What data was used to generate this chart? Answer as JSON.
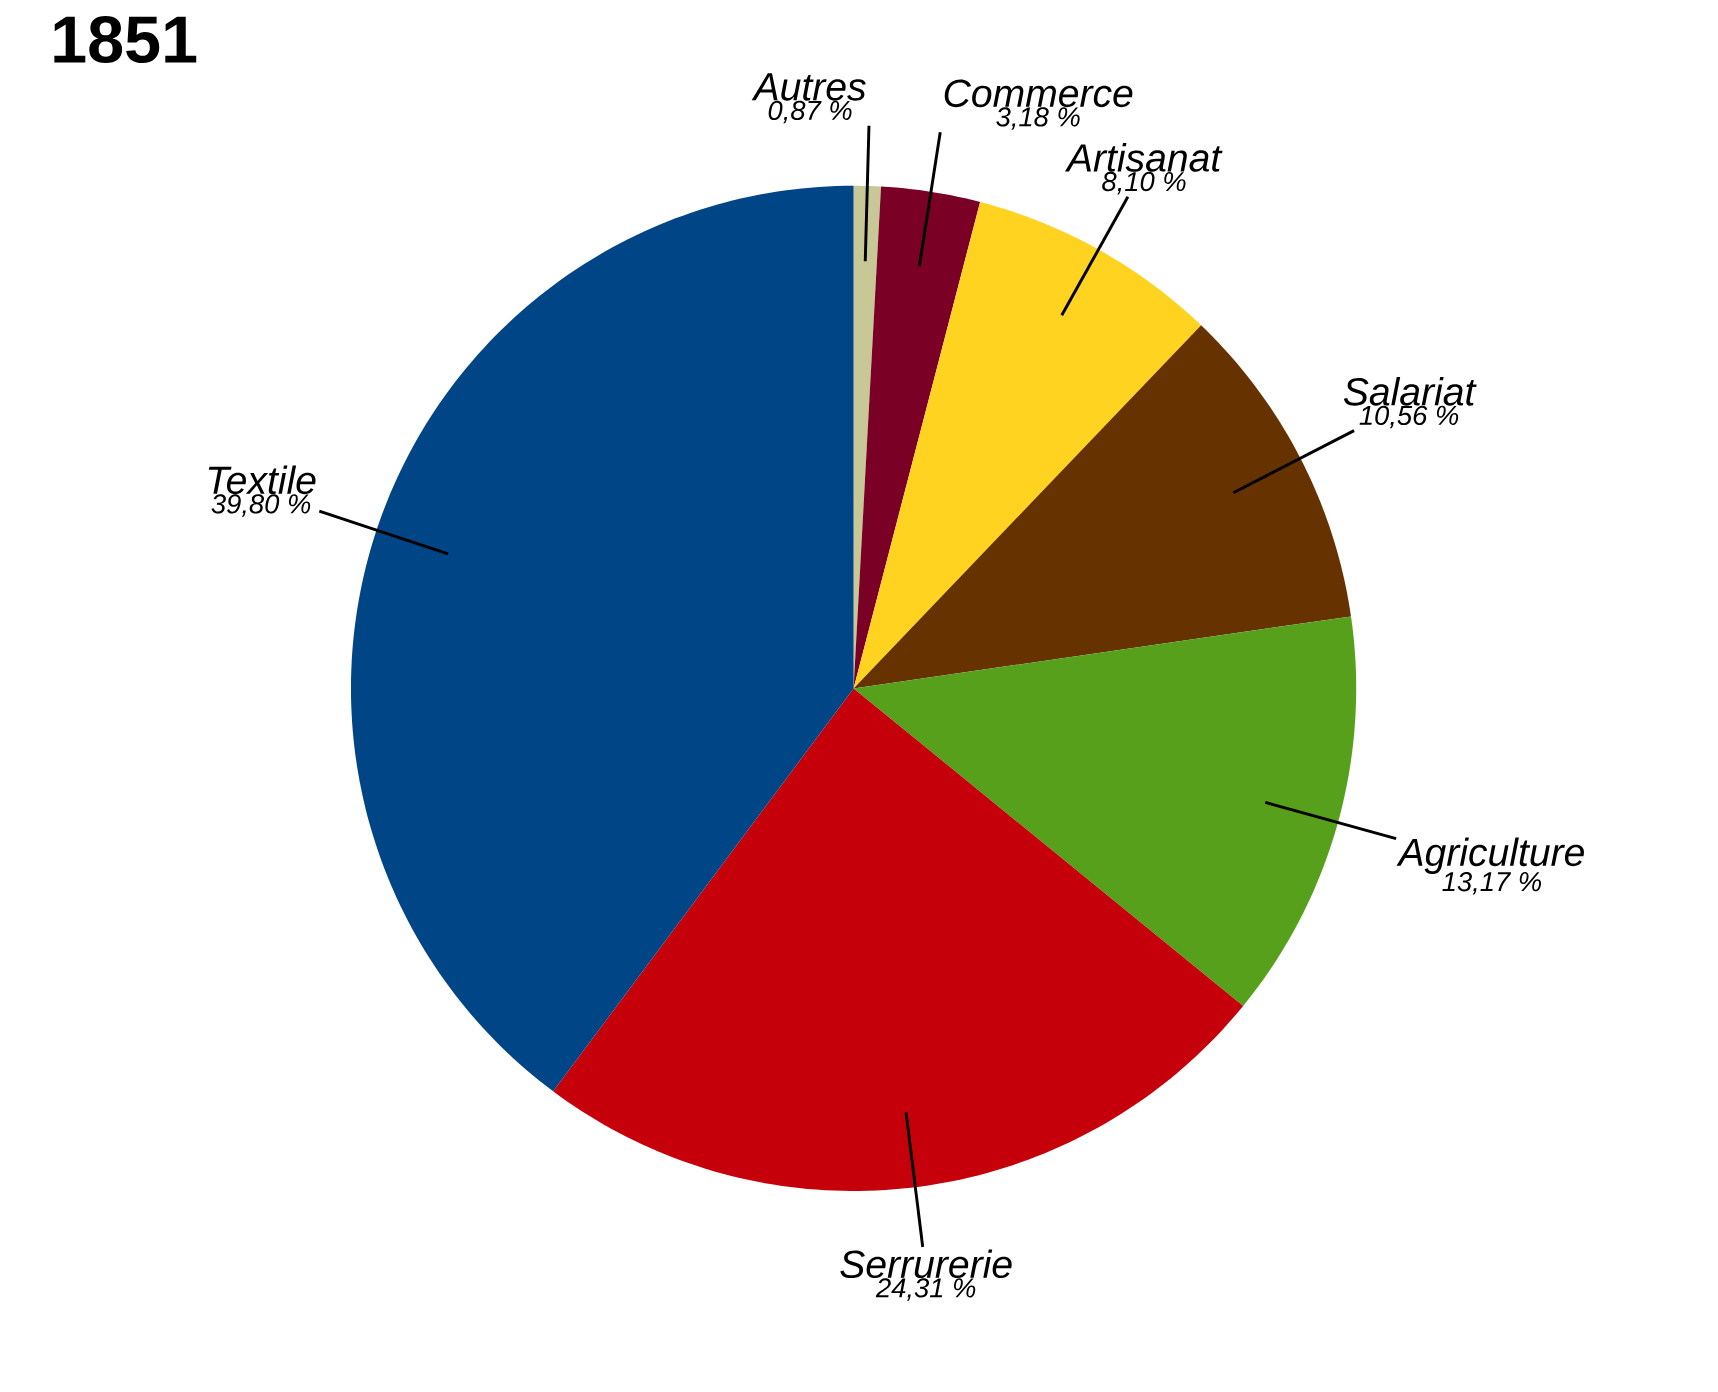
{
  "chart_data": {
    "type": "pie",
    "title": "1851",
    "categories": [
      "Autres",
      "Commerce",
      "Artisanat",
      "Salariat",
      "Agriculture",
      "Serrurerie",
      "Textile"
    ],
    "values": [
      0.87,
      3.18,
      8.1,
      10.56,
      13.17,
      24.31,
      39.8
    ],
    "value_labels": [
      "0,87 %",
      "3,18 %",
      "8,10 %",
      "10,56 %",
      "13,17 %",
      "24,31 %",
      "39,80 %"
    ],
    "colors": [
      "#c8c896",
      "#7a0026",
      "#ffd320",
      "#663300",
      "#57a01b",
      "#c5000b",
      "#004586"
    ],
    "legend": false
  }
}
